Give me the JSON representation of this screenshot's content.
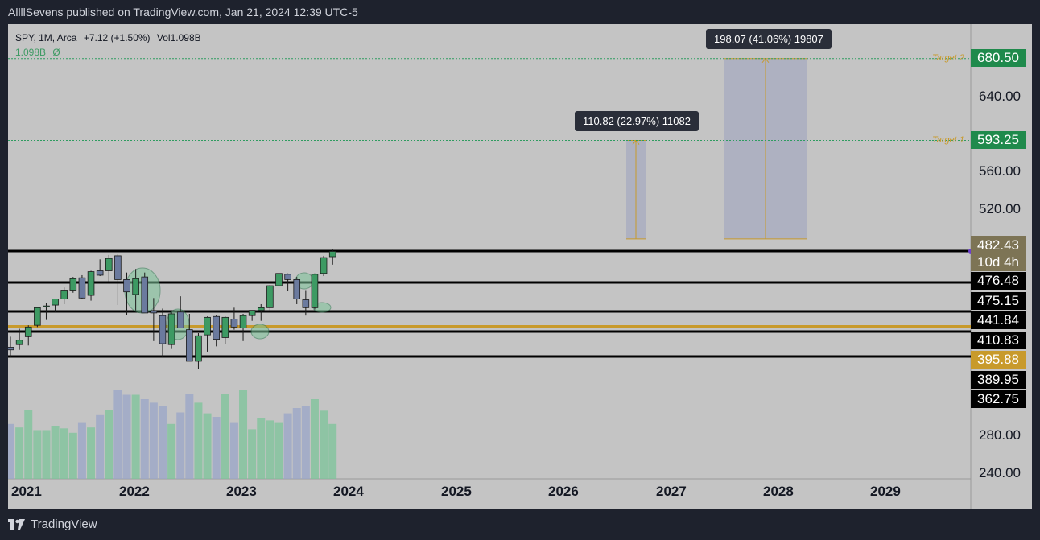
{
  "header": {
    "publisher_line": "AllllSevens published on TradingView.com, Jan 21, 2024 12:39 UTC-5"
  },
  "footer": {
    "brand": "TradingView"
  },
  "legend": {
    "symbol": "SPY, 1M, Arca",
    "change": "+7.12 (+1.50%)",
    "volume": "Vol1.098B",
    "volume_value": "1.098B",
    "volume_symbol": "Ø"
  },
  "measures": [
    {
      "label": "110.82 (22.97%) 11082"
    },
    {
      "label": "198.07 (41.06%) 19807"
    }
  ],
  "targets": [
    {
      "name": "Target 1",
      "price": 593.25
    },
    {
      "name": "Target 2",
      "price": 680.5
    }
  ],
  "price_labels": {
    "target2": "680.50",
    "target1": "593.25",
    "current": "482.43",
    "countdown": "10d 4h",
    "levels": [
      "476.48",
      "475.15",
      "441.84",
      "410.83",
      "395.88",
      "389.95",
      "362.75"
    ]
  },
  "colors": {
    "up": "#3d9a63",
    "down": "#6b7a9e",
    "gold": "#c89a2b",
    "target_green": "#1f8a4c",
    "background": "#c4c4c4"
  },
  "chart_data": {
    "type": "candlestick",
    "symbol": "SPY",
    "interval": "1M",
    "y_ticks": [
      240,
      280,
      520,
      560,
      640
    ],
    "x_ticks": [
      "2021",
      "2022",
      "2023",
      "2024",
      "2025",
      "2026",
      "2027",
      "2028",
      "2029"
    ],
    "horizontal_levels": [
      {
        "price": 476.48,
        "color": "black"
      },
      {
        "price": 441.84,
        "color": "black"
      },
      {
        "price": 410.83,
        "color": "black"
      },
      {
        "price": 395.88,
        "color": "gold"
      },
      {
        "price": 389.95,
        "color": "black"
      },
      {
        "price": 362.75,
        "color": "black"
      }
    ],
    "measure_ranges": [
      {
        "from": 482.43,
        "to": 593.25,
        "change": 110.82,
        "percent": 22.97
      },
      {
        "from": 482.43,
        "to": 680.5,
        "change": 198.07,
        "percent": 41.06
      }
    ],
    "candles": [
      {
        "t": "2021-01",
        "o": 373,
        "h": 385,
        "l": 362,
        "c": 370
      },
      {
        "t": "2021-02",
        "o": 376,
        "h": 394,
        "l": 370,
        "c": 381
      },
      {
        "t": "2021-03",
        "o": 385,
        "h": 398,
        "l": 375,
        "c": 396
      },
      {
        "t": "2021-04",
        "o": 398,
        "h": 419,
        "l": 396,
        "c": 418
      },
      {
        "t": "2021-05",
        "o": 419,
        "h": 423,
        "l": 404,
        "c": 420
      },
      {
        "t": "2021-06",
        "o": 421,
        "h": 428,
        "l": 413,
        "c": 428
      },
      {
        "t": "2021-07",
        "o": 428,
        "h": 441,
        "l": 422,
        "c": 438
      },
      {
        "t": "2021-08",
        "o": 438,
        "h": 453,
        "l": 435,
        "c": 451
      },
      {
        "t": "2021-09",
        "o": 452,
        "h": 455,
        "l": 428,
        "c": 429
      },
      {
        "t": "2021-10",
        "o": 432,
        "h": 460,
        "l": 426,
        "c": 459
      },
      {
        "t": "2021-11",
        "o": 460,
        "h": 473,
        "l": 454,
        "c": 455
      },
      {
        "t": "2021-12",
        "o": 460,
        "h": 478,
        "l": 448,
        "c": 474
      },
      {
        "t": "2022-01",
        "o": 477,
        "h": 479,
        "l": 421,
        "c": 450
      },
      {
        "t": "2022-02",
        "o": 450,
        "h": 458,
        "l": 410,
        "c": 436
      },
      {
        "t": "2022-03",
        "o": 433,
        "h": 462,
        "l": 415,
        "c": 451
      },
      {
        "t": "2022-04",
        "o": 453,
        "h": 458,
        "l": 412,
        "c": 412
      },
      {
        "t": "2022-05",
        "o": 414,
        "h": 429,
        "l": 380,
        "c": 412
      },
      {
        "t": "2022-06",
        "o": 409,
        "h": 417,
        "l": 362,
        "c": 377
      },
      {
        "t": "2022-07",
        "o": 376,
        "h": 413,
        "l": 371,
        "c": 411
      },
      {
        "t": "2022-08",
        "o": 413,
        "h": 431,
        "l": 395,
        "c": 395
      },
      {
        "t": "2022-09",
        "o": 393,
        "h": 411,
        "l": 357,
        "c": 357
      },
      {
        "t": "2022-10",
        "o": 357,
        "h": 389,
        "l": 348,
        "c": 386
      },
      {
        "t": "2022-11",
        "o": 387,
        "h": 408,
        "l": 368,
        "c": 407
      },
      {
        "t": "2022-12",
        "o": 408,
        "h": 410,
        "l": 374,
        "c": 382
      },
      {
        "t": "2023-01",
        "o": 384,
        "h": 408,
        "l": 377,
        "c": 407
      },
      {
        "t": "2023-02",
        "o": 405,
        "h": 418,
        "l": 393,
        "c": 396
      },
      {
        "t": "2023-03",
        "o": 395,
        "h": 411,
        "l": 380,
        "c": 409
      },
      {
        "t": "2023-04",
        "o": 409,
        "h": 415,
        "l": 403,
        "c": 415
      },
      {
        "t": "2023-05",
        "o": 415,
        "h": 422,
        "l": 403,
        "c": 418
      },
      {
        "t": "2023-06",
        "o": 418,
        "h": 444,
        "l": 415,
        "c": 443
      },
      {
        "t": "2023-07",
        "o": 443,
        "h": 459,
        "l": 437,
        "c": 457
      },
      {
        "t": "2023-08",
        "o": 456,
        "h": 457,
        "l": 437,
        "c": 450
      },
      {
        "t": "2023-09",
        "o": 450,
        "h": 453,
        "l": 422,
        "c": 428
      },
      {
        "t": "2023-10",
        "o": 427,
        "h": 438,
        "l": 409,
        "c": 418
      },
      {
        "t": "2023-11",
        "o": 418,
        "h": 457,
        "l": 416,
        "c": 456
      },
      {
        "t": "2023-12",
        "o": 457,
        "h": 477,
        "l": 454,
        "c": 475
      },
      {
        "t": "2024-01",
        "o": 476,
        "h": 485,
        "l": 467,
        "c": 482
      }
    ],
    "volume_relative": [
      0.62,
      0.58,
      0.78,
      0.55,
      0.55,
      0.6,
      0.57,
      0.52,
      0.64,
      0.58,
      0.72,
      0.78,
      1.0,
      0.95,
      0.95,
      0.9,
      0.86,
      0.82,
      0.62,
      0.75,
      0.96,
      0.86,
      0.74,
      0.7,
      0.96,
      0.64,
      1.0,
      0.56,
      0.69,
      0.66,
      0.64,
      0.74,
      0.8,
      0.82,
      0.9,
      0.77,
      0.62
    ]
  }
}
